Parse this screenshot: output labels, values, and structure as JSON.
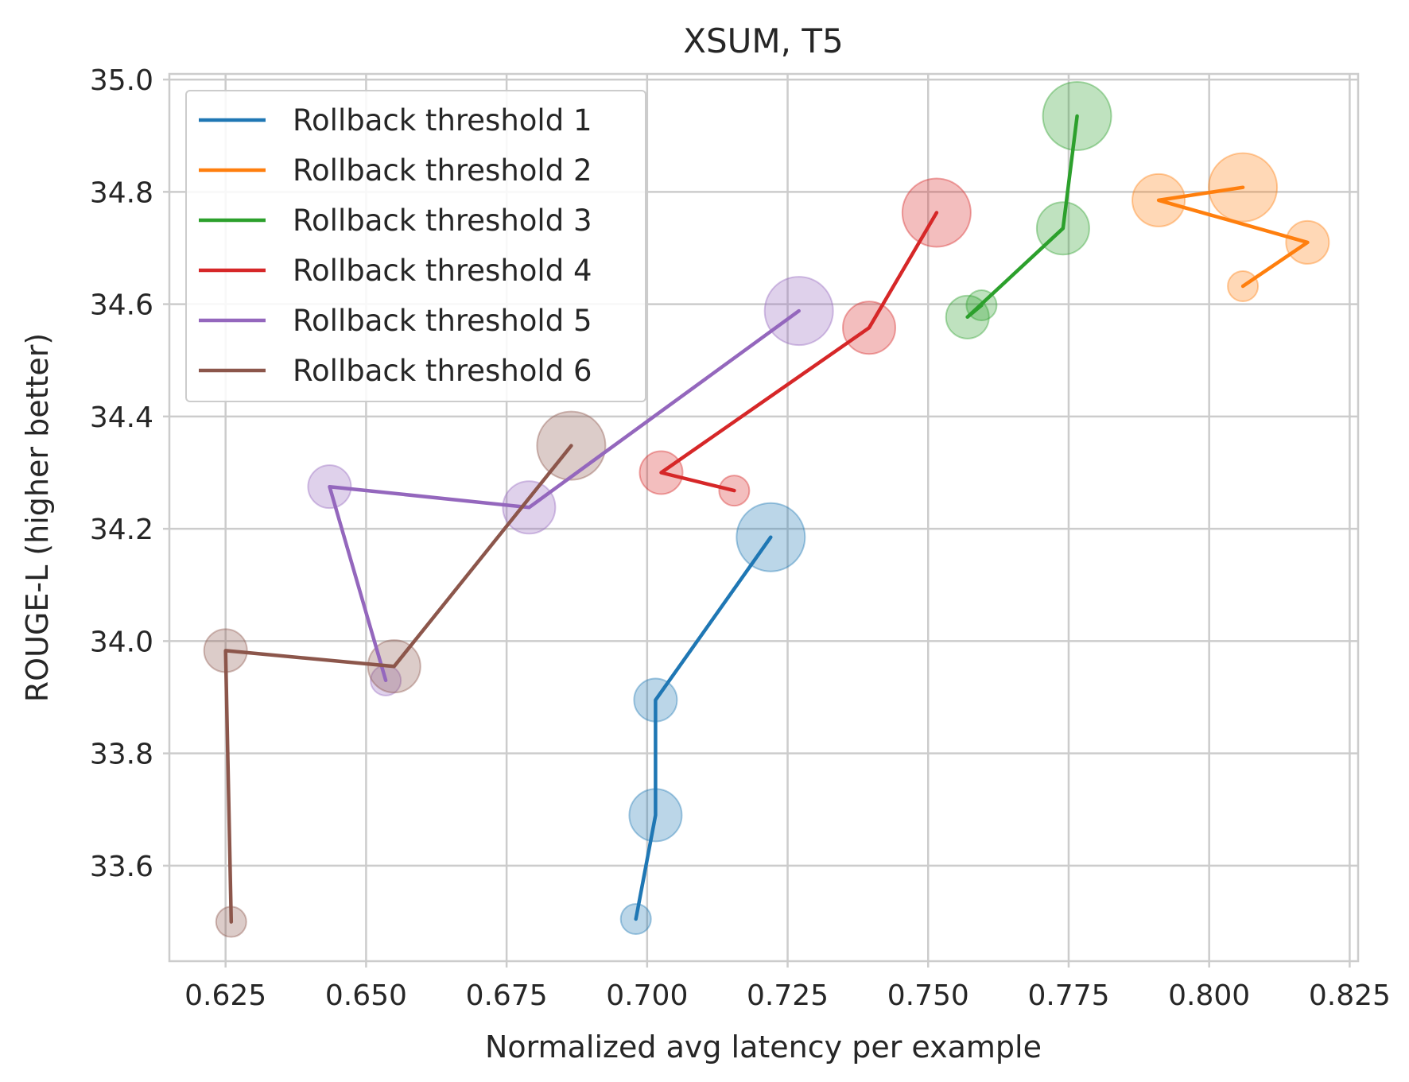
{
  "chart_data": {
    "type": "line",
    "title": "XSUM, T5",
    "xlabel": "Normalized avg latency per example",
    "ylabel": "ROUGE-L (higher better)",
    "xlim": [
      0.615,
      0.8265
    ],
    "ylim": [
      33.43,
      35.01
    ],
    "xticks": [
      0.625,
      0.65,
      0.675,
      0.7,
      0.725,
      0.75,
      0.775,
      0.8,
      0.825
    ],
    "xtick_labels": [
      "0.625",
      "0.650",
      "0.675",
      "0.700",
      "0.725",
      "0.750",
      "0.775",
      "0.800",
      "0.825"
    ],
    "yticks": [
      33.6,
      33.8,
      34.0,
      34.2,
      34.4,
      34.6,
      34.8,
      35.0
    ],
    "ytick_labels": [
      "33.6",
      "33.8",
      "34.0",
      "34.2",
      "34.4",
      "34.6",
      "34.8",
      "35.0"
    ],
    "grid": true,
    "legend_position": "upper-left",
    "note": "Each series is a line through points; translucent circles mark each point, circle size varies per point.",
    "series": [
      {
        "name": "Rollback threshold 1",
        "color": "#1f77b4",
        "x": [
          0.698,
          0.7015,
          0.7015,
          0.722
        ],
        "y": [
          33.505,
          33.69,
          33.895,
          34.185
        ],
        "marker_size": [
          1,
          3,
          2,
          4
        ]
      },
      {
        "name": "Rollback threshold 2",
        "color": "#ff7f0e",
        "x": [
          0.806,
          0.8175,
          0.791,
          0.806
        ],
        "y": [
          34.632,
          34.71,
          34.785,
          34.808
        ],
        "marker_size": [
          1,
          2,
          3,
          4
        ]
      },
      {
        "name": "Rollback threshold 3",
        "color": "#2ca02c",
        "x": [
          0.7595,
          0.757,
          0.774,
          0.7765
        ],
        "y": [
          34.598,
          34.577,
          34.735,
          34.935
        ],
        "marker_size": [
          1,
          2,
          3,
          4
        ]
      },
      {
        "name": "Rollback threshold 4",
        "color": "#d62728",
        "x": [
          0.7155,
          0.7025,
          0.7395,
          0.7515
        ],
        "y": [
          34.268,
          34.3,
          34.558,
          34.763
        ],
        "marker_size": [
          1,
          2,
          3,
          4
        ]
      },
      {
        "name": "Rollback threshold 5",
        "color": "#9467bd",
        "x": [
          0.6535,
          0.6435,
          0.679,
          0.727
        ],
        "y": [
          33.93,
          34.275,
          34.238,
          34.588
        ],
        "marker_size": [
          1,
          2,
          3,
          4
        ]
      },
      {
        "name": "Rollback threshold 6",
        "color": "#8c564b",
        "x": [
          0.626,
          0.625,
          0.655,
          0.6865
        ],
        "y": [
          33.5,
          33.983,
          33.955,
          34.348
        ],
        "marker_size": [
          1,
          2,
          3,
          4
        ]
      }
    ]
  }
}
